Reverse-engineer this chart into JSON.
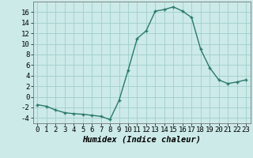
{
  "x": [
    0,
    1,
    2,
    3,
    4,
    5,
    6,
    7,
    8,
    9,
    10,
    11,
    12,
    13,
    14,
    15,
    16,
    17,
    18,
    19,
    20,
    21,
    22,
    23
  ],
  "y": [
    -1.5,
    -1.8,
    -2.5,
    -3.0,
    -3.2,
    -3.3,
    -3.5,
    -3.7,
    -4.3,
    -0.7,
    5.0,
    11.0,
    12.5,
    16.2,
    16.5,
    17.0,
    16.2,
    15.0,
    9.0,
    5.5,
    3.2,
    2.5,
    2.8,
    3.2
  ],
  "line_color": "#2a7a6a",
  "marker": "+",
  "marker_color": "#2a7a6a",
  "bg_color": "#cceae8",
  "grid_color": "#9ecfcc",
  "xlabel": "Humidex (Indice chaleur)",
  "xlim": [
    -0.5,
    23.5
  ],
  "ylim": [
    -5,
    18
  ],
  "yticks": [
    -4,
    -2,
    0,
    2,
    4,
    6,
    8,
    10,
    12,
    14,
    16
  ],
  "xticks": [
    0,
    1,
    2,
    3,
    4,
    5,
    6,
    7,
    8,
    9,
    10,
    11,
    12,
    13,
    14,
    15,
    16,
    17,
    18,
    19,
    20,
    21,
    22,
    23
  ],
  "tick_label_fontsize": 6.5,
  "xlabel_fontsize": 7.5,
  "line_width": 1.0,
  "marker_size": 3.5
}
